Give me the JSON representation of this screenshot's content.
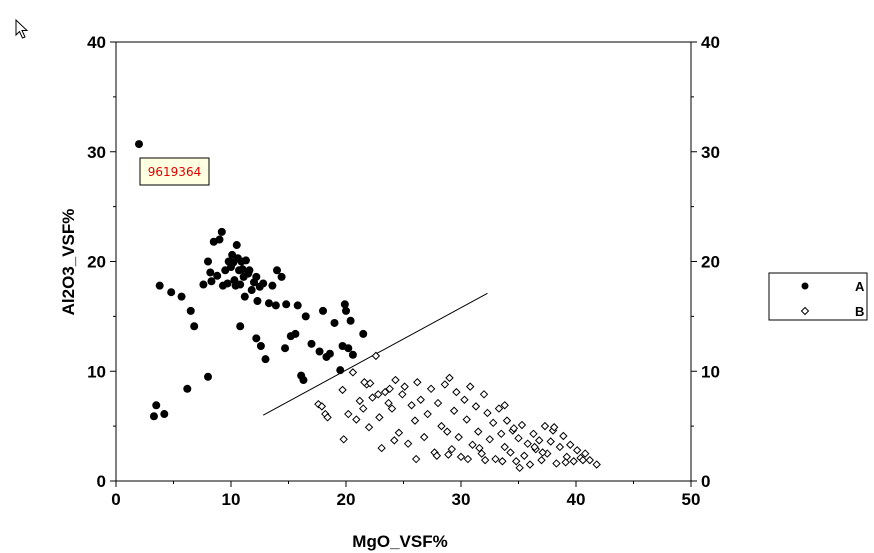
{
  "chart_data": {
    "type": "scatter",
    "xlabel": "MgO_VSF%",
    "ylabel": "Al2O3_VSF%",
    "xlim": [
      0,
      50
    ],
    "ylim": [
      0,
      40
    ],
    "x_ticks": [
      "0",
      "10",
      "20",
      "30",
      "40",
      "50"
    ],
    "y_ticks": [
      "0",
      "10",
      "20",
      "30",
      "40"
    ],
    "y2_ticks": [
      "0",
      "10",
      "20",
      "30",
      "40"
    ],
    "grid": false,
    "legend_placement": "right",
    "annotation": {
      "text": "9619364",
      "color": "#e00000"
    },
    "divider_line": {
      "x": [
        12.8,
        32.3
      ],
      "y": [
        6.0,
        17.1
      ]
    },
    "series": [
      {
        "name": "A",
        "marker": "filled-circle",
        "color": "#000000",
        "points": [
          [
            2.0,
            30.7
          ],
          [
            3.3,
            5.9
          ],
          [
            3.5,
            6.9
          ],
          [
            3.8,
            17.8
          ],
          [
            4.2,
            6.1
          ],
          [
            4.8,
            17.2
          ],
          [
            5.7,
            16.8
          ],
          [
            6.2,
            8.4
          ],
          [
            6.5,
            15.5
          ],
          [
            6.8,
            14.1
          ],
          [
            7.6,
            17.9
          ],
          [
            8.0,
            9.5
          ],
          [
            8.0,
            20.0
          ],
          [
            8.2,
            19.0
          ],
          [
            8.3,
            18.2
          ],
          [
            8.5,
            21.8
          ],
          [
            8.8,
            18.7
          ],
          [
            9.0,
            22.0
          ],
          [
            9.2,
            22.7
          ],
          [
            9.3,
            17.8
          ],
          [
            9.5,
            19.2
          ],
          [
            9.7,
            18.0
          ],
          [
            9.8,
            20.0
          ],
          [
            10.0,
            19.5
          ],
          [
            10.1,
            20.6
          ],
          [
            10.2,
            19.9
          ],
          [
            10.3,
            18.3
          ],
          [
            10.4,
            17.8
          ],
          [
            10.5,
            21.5
          ],
          [
            10.6,
            20.3
          ],
          [
            10.7,
            19.2
          ],
          [
            10.8,
            17.9
          ],
          [
            10.8,
            14.1
          ],
          [
            10.9,
            20.0
          ],
          [
            11.0,
            19.3
          ],
          [
            11.1,
            18.6
          ],
          [
            11.2,
            16.8
          ],
          [
            11.3,
            20.1
          ],
          [
            11.5,
            18.9
          ],
          [
            11.6,
            19.2
          ],
          [
            11.8,
            17.4
          ],
          [
            12.0,
            18.1
          ],
          [
            12.2,
            18.6
          ],
          [
            12.2,
            13.0
          ],
          [
            12.3,
            16.4
          ],
          [
            12.5,
            17.7
          ],
          [
            12.6,
            12.3
          ],
          [
            12.8,
            18.0
          ],
          [
            13.0,
            11.1
          ],
          [
            13.3,
            16.2
          ],
          [
            13.6,
            17.8
          ],
          [
            13.9,
            16.0
          ],
          [
            14.0,
            19.2
          ],
          [
            14.4,
            18.6
          ],
          [
            14.7,
            12.1
          ],
          [
            14.8,
            16.1
          ],
          [
            15.2,
            13.2
          ],
          [
            15.6,
            13.4
          ],
          [
            15.8,
            16.0
          ],
          [
            16.1,
            9.6
          ],
          [
            16.3,
            9.2
          ],
          [
            16.5,
            15.0
          ],
          [
            17.0,
            12.5
          ],
          [
            17.7,
            11.8
          ],
          [
            18.0,
            15.5
          ],
          [
            18.3,
            11.3
          ],
          [
            18.6,
            11.6
          ],
          [
            19.0,
            14.4
          ],
          [
            19.5,
            10.1
          ],
          [
            19.7,
            12.3
          ],
          [
            19.9,
            16.1
          ],
          [
            20.0,
            15.5
          ],
          [
            20.2,
            12.1
          ],
          [
            20.4,
            14.6
          ],
          [
            20.6,
            11.5
          ],
          [
            21.5,
            13.4
          ]
        ]
      },
      {
        "name": "B",
        "marker": "open-diamond",
        "color": "#000000",
        "points": [
          [
            17.6,
            7.0
          ],
          [
            17.9,
            6.8
          ],
          [
            18.2,
            6.1
          ],
          [
            18.4,
            5.8
          ],
          [
            19.7,
            8.3
          ],
          [
            19.8,
            3.8
          ],
          [
            20.2,
            6.1
          ],
          [
            20.6,
            9.9
          ],
          [
            20.9,
            5.6
          ],
          [
            21.2,
            7.3
          ],
          [
            21.5,
            6.6
          ],
          [
            21.8,
            8.8
          ],
          [
            22.0,
            4.9
          ],
          [
            22.3,
            7.6
          ],
          [
            22.6,
            11.4
          ],
          [
            22.9,
            5.8
          ],
          [
            23.1,
            3.0
          ],
          [
            23.4,
            8.1
          ],
          [
            23.7,
            7.1
          ],
          [
            24.0,
            6.6
          ],
          [
            24.3,
            9.2
          ],
          [
            24.6,
            4.4
          ],
          [
            24.9,
            7.9
          ],
          [
            25.1,
            8.6
          ],
          [
            25.4,
            3.4
          ],
          [
            25.7,
            6.9
          ],
          [
            26.0,
            5.5
          ],
          [
            26.2,
            9.0
          ],
          [
            26.5,
            7.4
          ],
          [
            26.8,
            4.0
          ],
          [
            27.1,
            6.1
          ],
          [
            27.4,
            8.4
          ],
          [
            27.7,
            2.6
          ],
          [
            28.0,
            7.1
          ],
          [
            28.3,
            5.0
          ],
          [
            28.6,
            8.8
          ],
          [
            28.8,
            4.5
          ],
          [
            29.0,
            9.4
          ],
          [
            29.2,
            2.9
          ],
          [
            29.4,
            6.4
          ],
          [
            29.6,
            8.1
          ],
          [
            29.8,
            4.0
          ],
          [
            30.0,
            2.2
          ],
          [
            30.3,
            7.4
          ],
          [
            30.5,
            5.6
          ],
          [
            30.8,
            8.6
          ],
          [
            31.0,
            3.3
          ],
          [
            31.3,
            6.8
          ],
          [
            31.5,
            4.5
          ],
          [
            31.8,
            2.5
          ],
          [
            32.0,
            7.9
          ],
          [
            32.3,
            6.2
          ],
          [
            32.5,
            3.8
          ],
          [
            32.8,
            5.3
          ],
          [
            33.0,
            2.0
          ],
          [
            33.3,
            6.6
          ],
          [
            33.5,
            4.3
          ],
          [
            33.8,
            3.1
          ],
          [
            34.0,
            5.5
          ],
          [
            34.3,
            2.6
          ],
          [
            34.5,
            4.6
          ],
          [
            34.8,
            1.8
          ],
          [
            35.0,
            3.9
          ],
          [
            35.3,
            5.1
          ],
          [
            35.5,
            2.3
          ],
          [
            35.8,
            3.4
          ],
          [
            36.0,
            1.5
          ],
          [
            36.3,
            4.3
          ],
          [
            36.5,
            2.9
          ],
          [
            36.8,
            3.7
          ],
          [
            37.0,
            1.9
          ],
          [
            37.3,
            5.0
          ],
          [
            37.5,
            2.5
          ],
          [
            37.8,
            3.6
          ],
          [
            38.0,
            4.6
          ],
          [
            38.3,
            1.6
          ],
          [
            38.6,
            3.1
          ],
          [
            38.9,
            4.1
          ],
          [
            39.2,
            2.2
          ],
          [
            39.5,
            3.3
          ],
          [
            39.8,
            1.8
          ],
          [
            40.1,
            2.8
          ],
          [
            40.4,
            2.1
          ],
          [
            40.8,
            2.5
          ],
          [
            41.2,
            1.9
          ],
          [
            41.8,
            1.5
          ],
          [
            33.8,
            6.9
          ],
          [
            34.6,
            4.8
          ],
          [
            36.4,
            3.1
          ],
          [
            38.1,
            4.9
          ],
          [
            21.6,
            9.0
          ],
          [
            22.1,
            8.9
          ],
          [
            22.8,
            7.9
          ],
          [
            23.8,
            8.4
          ],
          [
            24.2,
            3.7
          ],
          [
            26.1,
            2.0
          ],
          [
            27.9,
            2.3
          ],
          [
            28.9,
            2.4
          ],
          [
            30.6,
            2.0
          ],
          [
            31.6,
            3.0
          ],
          [
            32.1,
            1.9
          ],
          [
            33.6,
            1.8
          ],
          [
            35.1,
            1.2
          ],
          [
            37.1,
            2.6
          ],
          [
            39.1,
            1.7
          ],
          [
            40.6,
            1.9
          ]
        ]
      }
    ]
  }
}
